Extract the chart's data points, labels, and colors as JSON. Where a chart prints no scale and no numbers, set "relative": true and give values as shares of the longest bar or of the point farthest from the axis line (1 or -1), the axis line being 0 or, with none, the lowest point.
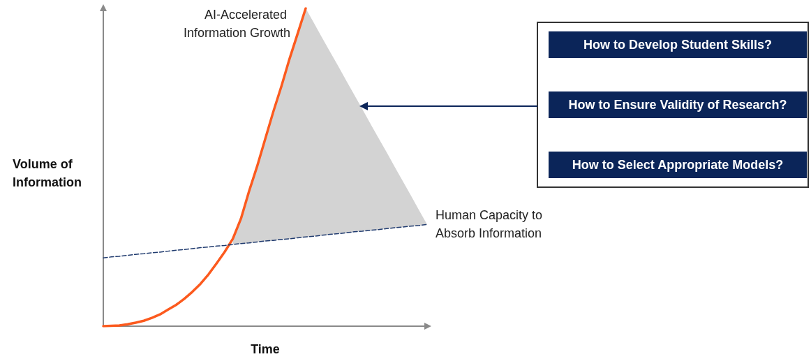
{
  "chart_data": {
    "type": "line",
    "relative": true,
    "xlabel": "Time",
    "ylabel": "Volume of Information",
    "grid": false,
    "legend": false,
    "marker": "none",
    "categories": [
      null,
      null,
      null,
      null,
      null,
      null,
      null,
      null,
      null,
      null,
      null,
      null,
      null,
      null,
      null,
      null,
      null,
      null,
      null,
      null,
      null,
      null,
      null,
      null,
      null,
      null,
      null,
      null,
      null,
      null,
      null,
      null,
      null,
      null,
      null,
      null,
      null,
      null,
      null,
      null,
      null
    ],
    "series": [
      {
        "type": "area",
        "color": "#d3d3d3",
        "values": [
          null,
          null,
          null,
          null,
          null,
          null,
          null,
          null,
          null,
          null,
          null,
          null,
          null,
          null,
          null,
          null,
          0.275,
          0.338,
          0.424,
          0.503,
          0.589,
          0.675,
          0.755,
          0.841,
          0.92,
          1,
          0.955,
          0.909,
          0.864,
          0.819,
          0.773,
          0.728,
          0.683,
          0.637,
          0.592,
          0.547,
          0.501,
          0.456,
          0.411,
          0.365,
          0.32
        ]
      },
      {
        "name": "AI-Accelerated Information Growth",
        "color": "#fc5a1e",
        "line_style": "solid",
        "values": [
          0,
          0.001,
          0.002,
          0.006,
          0.011,
          0.017,
          0.026,
          0.037,
          0.052,
          0.067,
          0.086,
          0.108,
          0.133,
          0.163,
          0.198,
          0.234,
          0.275,
          0.338,
          0.424,
          0.503,
          0.589,
          0.675,
          0.755,
          0.841,
          0.92,
          1,
          null,
          null,
          null,
          null,
          null,
          null,
          null,
          null,
          null,
          null,
          null,
          null,
          null,
          null,
          null
        ]
      },
      {
        "name": "Human Capacity to Absorb Information",
        "color": "#1f3a6e",
        "line_style": "dashed",
        "values": [
          0.215,
          0.218,
          0.22,
          0.223,
          0.226,
          0.228,
          0.231,
          0.233,
          0.236,
          0.239,
          0.241,
          0.244,
          0.247,
          0.249,
          0.252,
          0.254,
          0.257,
          0.26,
          0.262,
          0.265,
          0.268,
          0.27,
          0.273,
          0.275,
          0.278,
          0.281,
          0.283,
          0.286,
          0.289,
          0.291,
          0.294,
          0.297,
          0.299,
          0.302,
          0.304,
          0.307,
          0.31,
          0.312,
          0.315,
          0.317,
          0.32
        ]
      }
    ],
    "annotations": [
      "How to Develop Student Skills?",
      "How to Ensure Validity of Research?",
      "How to Select Appropriate Models?"
    ]
  }
}
